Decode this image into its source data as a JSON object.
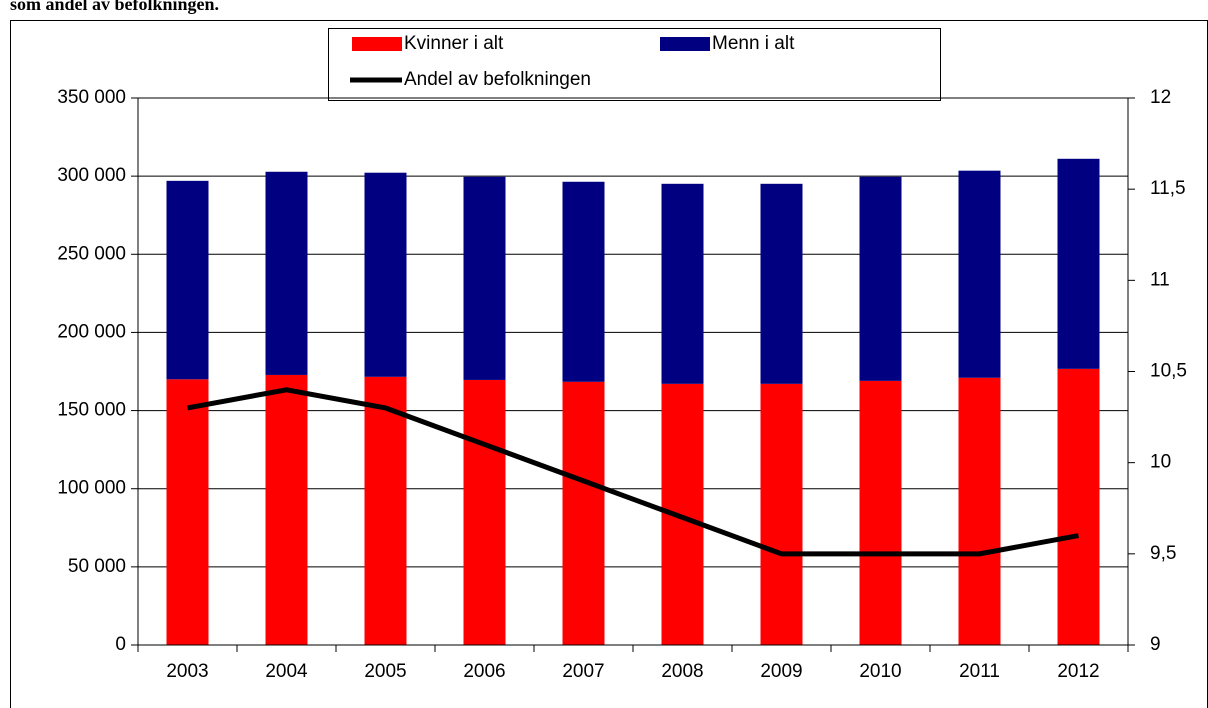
{
  "chart_data": {
    "type": "bar",
    "title": "som andel av befolkningen.",
    "stacked": true,
    "categories": [
      "2003",
      "2004",
      "2005",
      "2006",
      "2007",
      "2008",
      "2009",
      "2010",
      "2011",
      "2012"
    ],
    "series": [
      {
        "name": "Kvinner i alt",
        "color": "#ff0000",
        "values": [
          170000,
          172800,
          171600,
          169600,
          168400,
          167100,
          167100,
          169000,
          171000,
          176700
        ]
      },
      {
        "name": "Menn i alt",
        "color": "#000080",
        "values": [
          127000,
          130000,
          130600,
          130000,
          128000,
          128000,
          128000,
          130600,
          132500,
          134400
        ]
      },
      {
        "name": "Andel av befolkningen",
        "color": "#000000",
        "type": "line",
        "axis": "y2",
        "values": [
          10.3,
          10.4,
          10.3,
          10.1,
          9.9,
          9.7,
          9.5,
          9.5,
          9.5,
          9.6
        ]
      }
    ],
    "ylim": [
      0,
      350000
    ],
    "yticks": [
      {
        "value": 0,
        "label": "0"
      },
      {
        "value": 50000,
        "label": "50 000"
      },
      {
        "value": 100000,
        "label": "100 000"
      },
      {
        "value": 150000,
        "label": "150 000"
      },
      {
        "value": 200000,
        "label": "200 000"
      },
      {
        "value": 250000,
        "label": "250 000"
      },
      {
        "value": 300000,
        "label": "300 000"
      },
      {
        "value": 350000,
        "label": "350 000"
      }
    ],
    "y2lim": [
      9,
      12
    ],
    "y2ticks": [
      9,
      {
        "value": 9.5,
        "label": "9,5"
      },
      10,
      {
        "value": 10.5,
        "label": "10,5"
      },
      11,
      {
        "value": 11.5,
        "label": "11,5"
      },
      12
    ],
    "grid": true,
    "legend": "top"
  }
}
